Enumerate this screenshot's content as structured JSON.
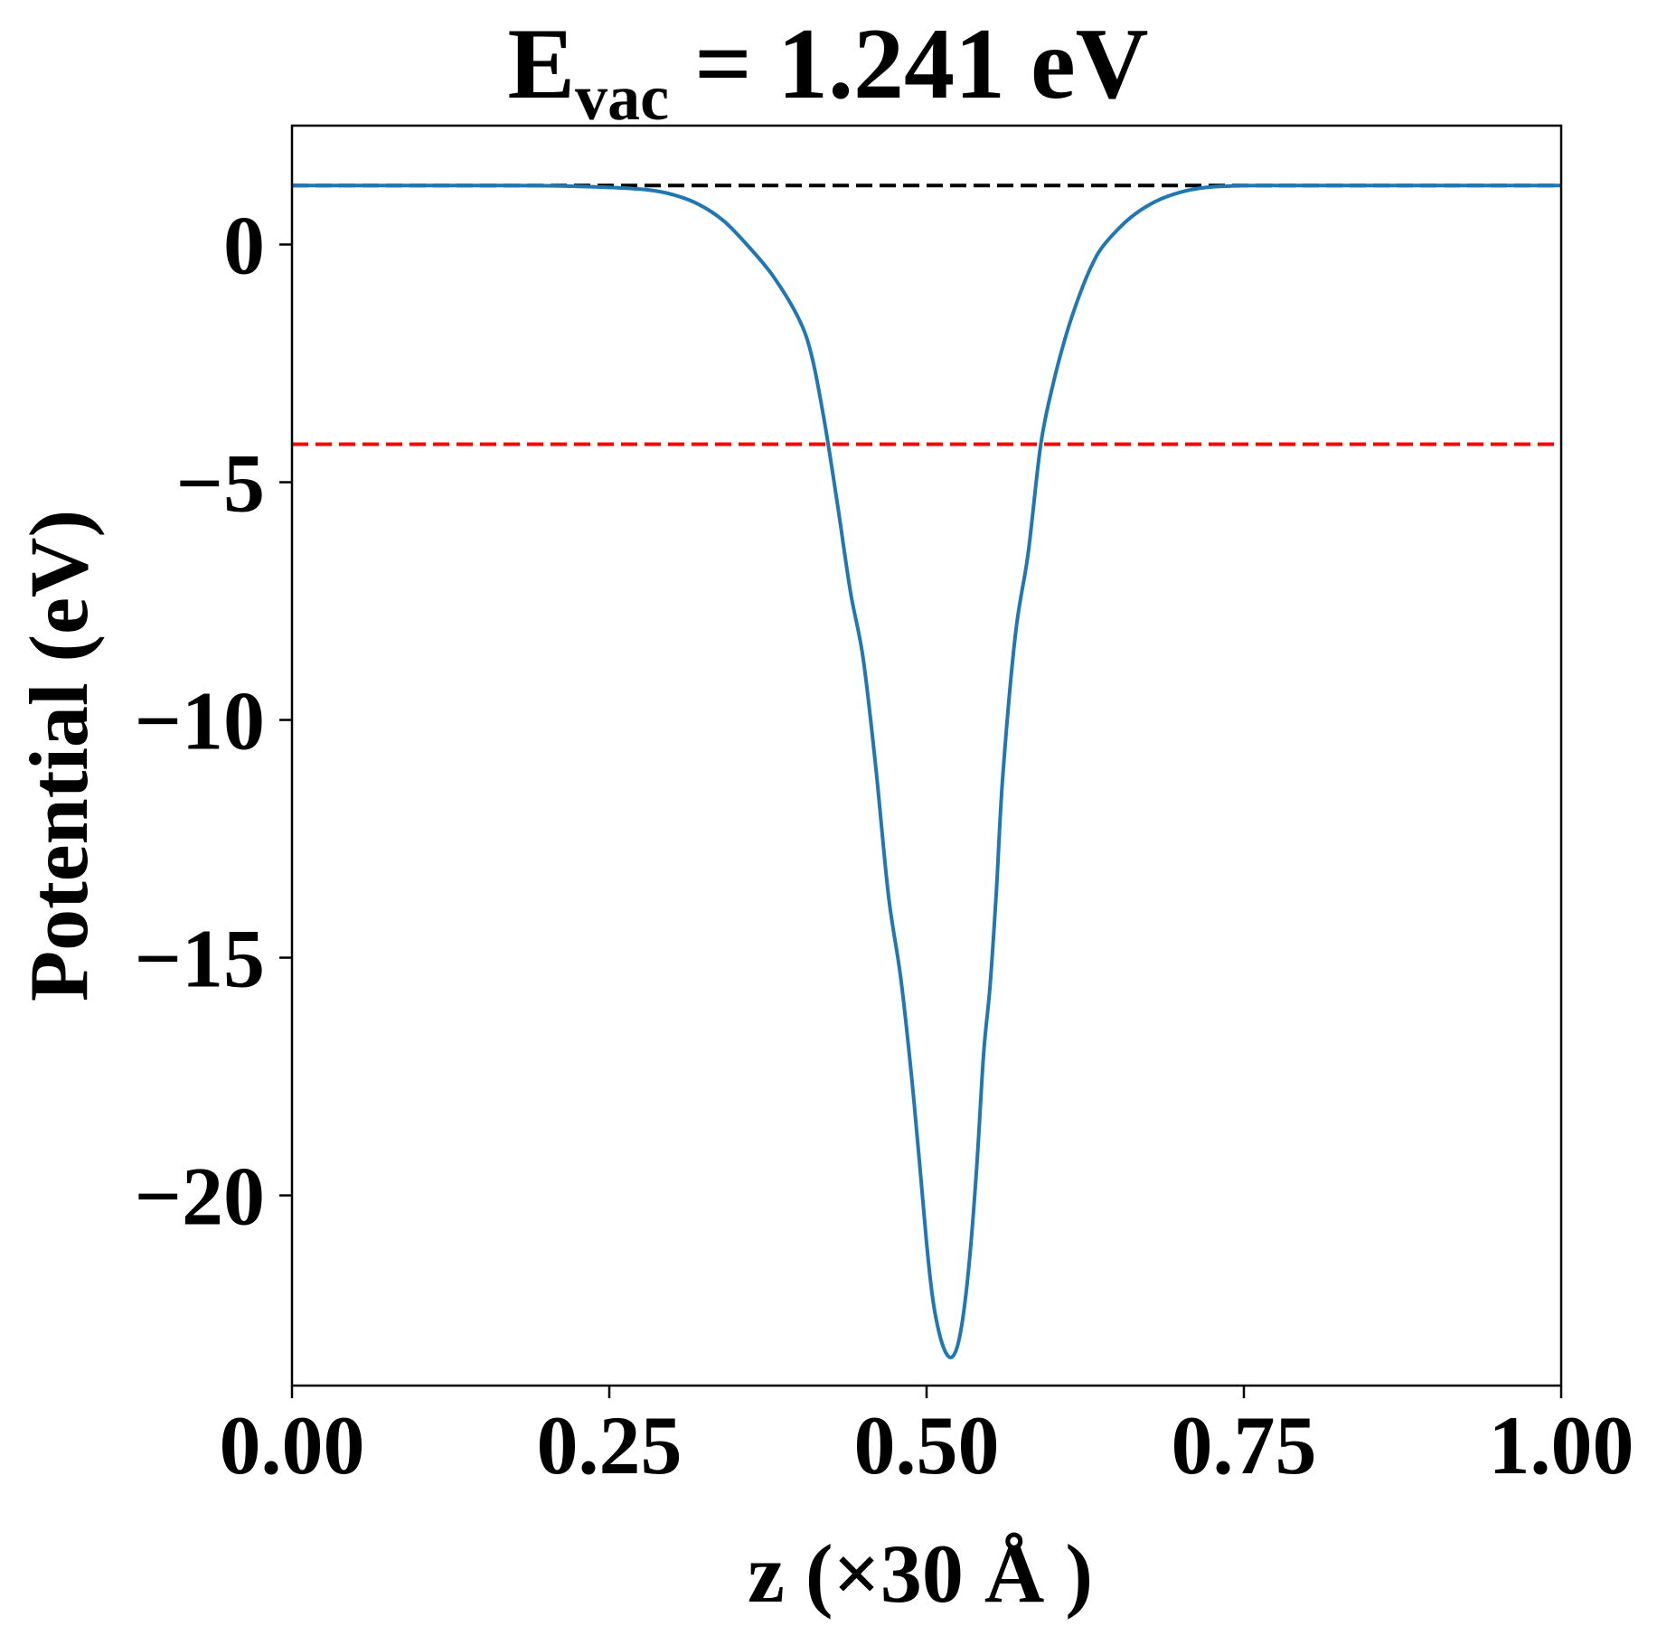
{
  "chart_data": {
    "type": "line",
    "title": {
      "main": "E",
      "subscript": "vac",
      "rest": " = 1.241 eV"
    },
    "xlabel": "z (×30 Å )",
    "ylabel": "Potential (eV)",
    "xlim": [
      0.0,
      1.0
    ],
    "ylim": [
      -24.0,
      2.5
    ],
    "x_ticks": [
      0.0,
      0.25,
      0.5,
      0.75,
      1.0
    ],
    "x_tick_labels": [
      "0.00",
      "0.25",
      "0.50",
      "0.75",
      "1.00"
    ],
    "y_ticks": [
      0,
      -5,
      -10,
      -15,
      -20
    ],
    "y_tick_labels": [
      "0",
      "−5",
      "−10",
      "−15",
      "−20"
    ],
    "grid": false,
    "series": [
      {
        "color": "#1f77b4",
        "x": [
          0.0,
          0.05,
          0.1,
          0.15,
          0.2,
          0.25,
          0.28,
          0.3,
          0.32,
          0.34,
          0.36,
          0.38,
          0.4,
          0.41,
          0.42,
          0.43,
          0.44,
          0.45,
          0.46,
          0.47,
          0.48,
          0.49,
          0.5,
          0.505,
          0.51,
          0.515,
          0.52,
          0.525,
          0.53,
          0.535,
          0.54,
          0.545,
          0.55,
          0.555,
          0.56,
          0.57,
          0.58,
          0.59,
          0.6,
          0.61,
          0.62,
          0.63,
          0.64,
          0.66,
          0.68,
          0.7,
          0.72,
          0.74,
          0.76,
          0.8,
          0.85,
          0.9,
          0.95,
          1.0
        ],
        "y": [
          1.241,
          1.241,
          1.241,
          1.24,
          1.235,
          1.2,
          1.15,
          1.05,
          0.85,
          0.5,
          -0.05,
          -0.7,
          -1.6,
          -2.4,
          -3.8,
          -5.5,
          -7.3,
          -8.7,
          -11.0,
          -13.7,
          -15.5,
          -18.0,
          -21.0,
          -22.2,
          -22.9,
          -23.3,
          -23.4,
          -23.1,
          -22.3,
          -21.0,
          -19.2,
          -17.0,
          -15.6,
          -13.6,
          -11.2,
          -8.2,
          -6.5,
          -4.2,
          -2.9,
          -1.9,
          -1.1,
          -0.45,
          0.0,
          0.55,
          0.9,
          1.1,
          1.2,
          1.23,
          1.24,
          1.241,
          1.241,
          1.241,
          1.241,
          1.241
        ]
      }
    ],
    "reference_lines": [
      {
        "y": 1.241,
        "color": "#000000",
        "style": "dashed"
      },
      {
        "y": -4.2,
        "color": "#ff0000",
        "style": "dashed"
      }
    ]
  }
}
